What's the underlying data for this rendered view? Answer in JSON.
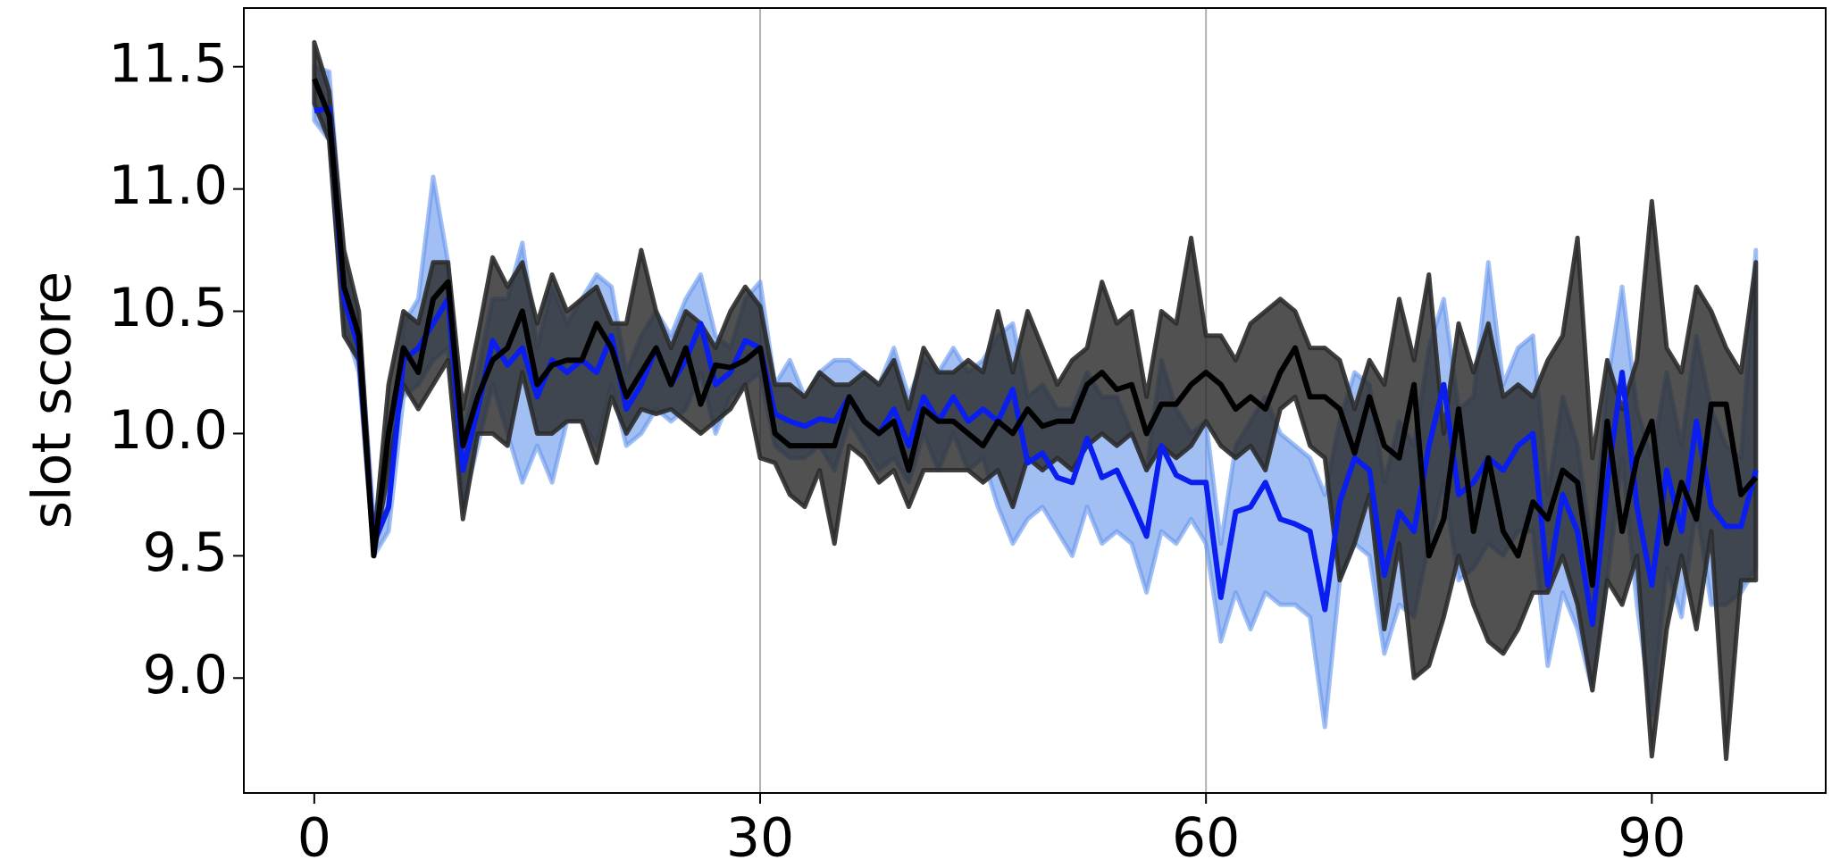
{
  "chart_data": {
    "type": "line_band",
    "ylabel": "slot score",
    "x": [
      0,
      1,
      2,
      3,
      4,
      5,
      6,
      7,
      8,
      9,
      10,
      11,
      12,
      13,
      14,
      15,
      16,
      17,
      18,
      19,
      20,
      21,
      22,
      23,
      24,
      25,
      26,
      27,
      28,
      29,
      30,
      31,
      32,
      33,
      34,
      35,
      36,
      37,
      38,
      39,
      40,
      41,
      42,
      43,
      44,
      45,
      46,
      47,
      48,
      49,
      50,
      51,
      52,
      53,
      54,
      55,
      56,
      57,
      58,
      59,
      60,
      61,
      62,
      63,
      64,
      65,
      66,
      67,
      68,
      69,
      70,
      71,
      72,
      73,
      74,
      75,
      76,
      77,
      78,
      79,
      80,
      81,
      82,
      83,
      84,
      85,
      86,
      87,
      88,
      89,
      90,
      91,
      92,
      93,
      94,
      95,
      96,
      97
    ],
    "xlim": [
      -4.74,
      101.7
    ],
    "xticks": [
      0,
      30,
      60,
      90
    ],
    "ylim": [
      8.53,
      11.74
    ],
    "yticks": [
      {
        "value": 9,
        "label": "9.0"
      },
      9.5,
      {
        "value": 10,
        "label": "10.0"
      },
      10.5,
      {
        "value": 11,
        "label": "11.0"
      },
      11.5
    ],
    "vlines": [
      30,
      60
    ],
    "series": [
      {
        "color": "#0a1ef0",
        "band_color": "#6495ed",
        "values": [
          11.32,
          11.33,
          10.55,
          10.35,
          9.55,
          9.7,
          10.3,
          10.35,
          10.45,
          10.55,
          9.85,
          10.1,
          10.38,
          10.28,
          10.35,
          10.15,
          10.3,
          10.25,
          10.3,
          10.25,
          10.4,
          10.1,
          10.2,
          10.35,
          10.2,
          10.3,
          10.45,
          10.2,
          10.25,
          10.38,
          10.35,
          10.08,
          10.05,
          10.03,
          10.06,
          10.05,
          10.15,
          10.05,
          10.0,
          10.1,
          9.95,
          10.15,
          10.05,
          10.15,
          10.05,
          10.1,
          10.05,
          10.18,
          9.88,
          9.92,
          9.82,
          9.8,
          9.98,
          9.82,
          9.85,
          9.72,
          9.58,
          9.95,
          9.83,
          9.8,
          9.8,
          9.33,
          9.68,
          9.7,
          9.8,
          9.65,
          9.63,
          9.6,
          9.28,
          9.72,
          9.9,
          9.85,
          9.42,
          9.68,
          9.6,
          9.95,
          10.2,
          9.75,
          9.8,
          9.9,
          9.85,
          9.95,
          10.0,
          9.38,
          9.75,
          9.6,
          9.22,
          9.8,
          10.25,
          9.7,
          9.38,
          9.85,
          9.6,
          10.05,
          9.7,
          9.62,
          9.62,
          9.85
        ],
        "lower": [
          11.28,
          11.2,
          10.45,
          10.25,
          9.5,
          9.6,
          10.15,
          10.2,
          10.3,
          10.35,
          9.7,
          9.95,
          10.2,
          10.0,
          9.8,
          9.95,
          9.8,
          10.05,
          10.05,
          9.95,
          10.2,
          9.95,
          10.0,
          10.1,
          10.05,
          10.1,
          10.25,
          10.0,
          10.15,
          10.2,
          10.25,
          9.95,
          9.9,
          9.9,
          9.95,
          9.85,
          10.05,
          9.95,
          9.85,
          9.9,
          9.8,
          10.0,
          9.85,
          10.0,
          9.85,
          9.9,
          9.7,
          9.55,
          9.65,
          9.7,
          9.6,
          9.5,
          9.7,
          9.55,
          9.6,
          9.55,
          9.35,
          9.6,
          9.55,
          9.65,
          9.55,
          9.15,
          9.35,
          9.2,
          9.35,
          9.3,
          9.3,
          9.25,
          8.8,
          9.4,
          9.55,
          9.5,
          9.1,
          9.3,
          9.25,
          9.55,
          9.8,
          9.4,
          9.45,
          9.55,
          9.5,
          9.6,
          9.6,
          9.05,
          9.35,
          9.2,
          8.95,
          9.4,
          9.9,
          9.3,
          8.85,
          9.45,
          9.25,
          9.7,
          9.3,
          9.3,
          9.35,
          9.45
        ],
        "upper": [
          11.5,
          11.48,
          10.7,
          10.45,
          9.65,
          9.85,
          10.45,
          10.55,
          11.05,
          10.7,
          10.0,
          10.25,
          10.55,
          10.55,
          10.78,
          10.35,
          10.6,
          10.45,
          10.55,
          10.65,
          10.6,
          10.25,
          10.4,
          10.5,
          10.4,
          10.55,
          10.65,
          10.4,
          10.35,
          10.55,
          10.62,
          10.2,
          10.3,
          10.15,
          10.25,
          10.3,
          10.3,
          10.25,
          10.2,
          10.35,
          10.15,
          10.3,
          10.25,
          10.35,
          10.25,
          10.3,
          10.4,
          10.45,
          10.15,
          10.2,
          10.1,
          10.1,
          10.25,
          10.15,
          10.15,
          10.0,
          9.85,
          10.3,
          10.1,
          10.0,
          10.05,
          9.55,
          9.95,
          10.05,
          10.15,
          10.0,
          9.95,
          9.9,
          9.75,
          10.05,
          10.25,
          10.2,
          9.8,
          10.05,
          9.95,
          10.35,
          10.55,
          10.1,
          10.15,
          10.7,
          10.2,
          10.35,
          10.4,
          9.75,
          10.15,
          9.95,
          9.5,
          10.2,
          10.6,
          10.1,
          9.9,
          10.25,
          9.95,
          10.4,
          10.1,
          9.95,
          9.9,
          10.75
        ]
      },
      {
        "color": "#000000",
        "band_color": "#2b2b2b",
        "values": [
          11.45,
          11.3,
          10.6,
          10.4,
          9.5,
          10.0,
          10.35,
          10.25,
          10.55,
          10.62,
          9.95,
          10.15,
          10.3,
          10.35,
          10.5,
          10.2,
          10.28,
          10.3,
          10.3,
          10.45,
          10.35,
          10.15,
          10.25,
          10.35,
          10.2,
          10.35,
          10.12,
          10.28,
          10.27,
          10.3,
          10.35,
          10.0,
          9.95,
          9.95,
          9.95,
          9.95,
          10.15,
          10.05,
          10.0,
          10.05,
          9.85,
          10.1,
          10.05,
          10.05,
          10.0,
          9.95,
          10.05,
          10.0,
          10.1,
          10.03,
          10.05,
          10.05,
          10.2,
          10.25,
          10.18,
          10.2,
          10.0,
          10.12,
          10.12,
          10.2,
          10.25,
          10.2,
          10.1,
          10.15,
          10.1,
          10.25,
          10.35,
          10.15,
          10.15,
          10.1,
          9.92,
          10.15,
          9.95,
          9.9,
          10.2,
          9.5,
          9.65,
          10.1,
          9.6,
          9.9,
          9.6,
          9.5,
          9.72,
          9.65,
          9.85,
          9.8,
          9.38,
          10.05,
          9.6,
          9.9,
          10.05,
          9.55,
          9.8,
          9.65,
          10.12,
          10.12,
          9.75,
          9.82
        ],
        "lower": [
          11.35,
          11.2,
          10.4,
          10.3,
          9.5,
          9.85,
          10.2,
          10.1,
          10.2,
          10.3,
          9.65,
          10.0,
          10.0,
          9.95,
          10.25,
          10.0,
          10.0,
          10.05,
          10.05,
          9.88,
          10.15,
          10.0,
          10.1,
          10.08,
          10.1,
          10.05,
          10.0,
          10.05,
          10.1,
          10.2,
          9.9,
          9.88,
          9.75,
          9.7,
          9.85,
          9.55,
          9.95,
          9.9,
          9.8,
          9.85,
          9.7,
          9.85,
          9.85,
          9.85,
          9.85,
          9.8,
          9.85,
          9.7,
          9.9,
          9.85,
          9.9,
          9.85,
          9.95,
          10.0,
          9.95,
          10.0,
          9.85,
          9.95,
          9.9,
          9.95,
          10.05,
          9.95,
          9.9,
          9.95,
          9.85,
          10.1,
          10.15,
          9.95,
          9.9,
          9.4,
          9.55,
          9.75,
          9.2,
          9.55,
          9.0,
          9.05,
          9.25,
          9.5,
          9.3,
          9.15,
          9.1,
          9.2,
          9.35,
          9.35,
          9.5,
          9.3,
          8.95,
          9.4,
          9.3,
          9.5,
          8.68,
          9.2,
          9.5,
          9.2,
          9.6,
          8.67,
          9.4,
          9.4
        ],
        "upper": [
          11.6,
          11.4,
          10.75,
          10.5,
          9.55,
          10.2,
          10.5,
          10.45,
          10.7,
          10.7,
          10.1,
          10.4,
          10.72,
          10.6,
          10.7,
          10.45,
          10.65,
          10.5,
          10.55,
          10.6,
          10.45,
          10.45,
          10.75,
          10.5,
          10.35,
          10.5,
          10.45,
          10.35,
          10.5,
          10.6,
          10.52,
          10.2,
          10.2,
          10.15,
          10.25,
          10.2,
          10.2,
          10.25,
          10.2,
          10.3,
          10.1,
          10.35,
          10.25,
          10.25,
          10.3,
          10.25,
          10.5,
          10.25,
          10.5,
          10.35,
          10.2,
          10.3,
          10.35,
          10.62,
          10.45,
          10.5,
          10.15,
          10.5,
          10.45,
          10.8,
          10.4,
          10.4,
          10.3,
          10.45,
          10.5,
          10.55,
          10.5,
          10.35,
          10.35,
          10.3,
          10.1,
          10.3,
          10.2,
          10.55,
          10.3,
          10.65,
          10.0,
          10.45,
          10.25,
          10.45,
          10.15,
          10.2,
          10.15,
          10.3,
          10.4,
          10.8,
          9.9,
          10.3,
          10.1,
          10.3,
          10.95,
          10.35,
          10.25,
          10.6,
          10.5,
          10.35,
          10.25,
          10.7
        ]
      }
    ]
  }
}
